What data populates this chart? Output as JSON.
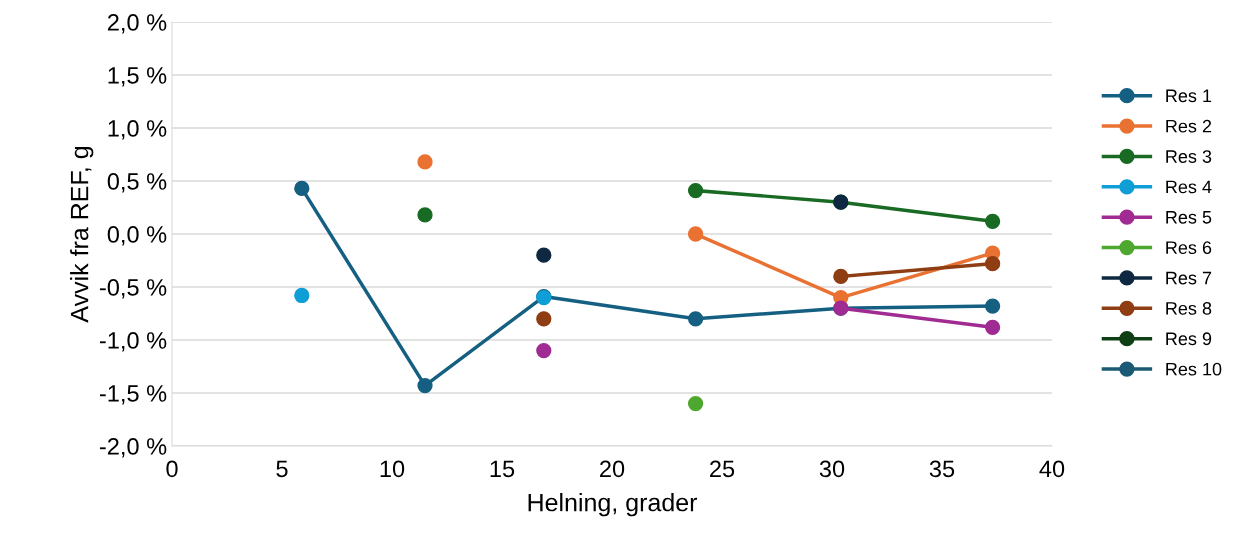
{
  "chart_data": {
    "type": "line",
    "xlabel": "Helning, grader",
    "ylabel": "Avvik fra REF, g",
    "x": [
      5.9,
      11.5,
      16.9,
      23.8,
      30.4,
      37.3
    ],
    "series": [
      {
        "name": "Res 1",
        "color": "#156082",
        "values": [
          0.43,
          -1.43,
          -0.59,
          -0.8,
          -0.7,
          -0.68
        ]
      },
      {
        "name": "Res 2",
        "color": "#e97132",
        "values": [
          null,
          0.68,
          null,
          0.0,
          -0.6,
          -0.18
        ]
      },
      {
        "name": "Res 3",
        "color": "#196b24",
        "values": [
          null,
          0.18,
          null,
          0.41,
          0.3,
          0.12
        ]
      },
      {
        "name": "Res 4",
        "color": "#0f9ed5",
        "type": "scatter",
        "values": [
          -0.58,
          null,
          -0.6,
          null,
          null,
          null
        ]
      },
      {
        "name": "Res 5",
        "color": "#a02b93",
        "values": [
          null,
          null,
          -1.1,
          null,
          -0.7,
          -0.88
        ]
      },
      {
        "name": "Res 6",
        "color": "#4ea72e",
        "values": [
          null,
          null,
          null,
          -1.6,
          null,
          null
        ]
      },
      {
        "name": "Res 7",
        "color": "#0e2841",
        "type": "scatter",
        "values": [
          null,
          null,
          -0.2,
          null,
          0.3,
          null
        ]
      },
      {
        "name": "Res 8",
        "color": "#8f3d12",
        "values": [
          null,
          null,
          -0.8,
          null,
          -0.4,
          -0.28
        ]
      },
      {
        "name": "Res 9",
        "color": "#0f4015",
        "values": [
          null,
          null,
          null,
          null,
          null,
          null
        ]
      },
      {
        "name": "Res 10",
        "color": "#1a5a75",
        "values": [
          null,
          null,
          null,
          null,
          null,
          null
        ]
      }
    ],
    "xlim": [
      0,
      40
    ],
    "xticks": [
      0,
      5,
      10,
      15,
      20,
      25,
      30,
      35,
      40
    ],
    "ylim": [
      -2.0,
      2.0
    ],
    "yticks": [
      {
        "value": -2.0,
        "label": "-2,0 %"
      },
      {
        "value": -1.5,
        "label": "-1,5 %"
      },
      {
        "value": -1.0,
        "label": "-1,0 %"
      },
      {
        "value": -0.5,
        "label": "-0,5 %"
      },
      {
        "value": 0.0,
        "label": "0,0 %"
      },
      {
        "value": 0.5,
        "label": "0,5 %"
      },
      {
        "value": 1.0,
        "label": "1,0 %"
      },
      {
        "value": 1.5,
        "label": "1,5 %"
      },
      {
        "value": 2.0,
        "label": "2,0 %"
      }
    ],
    "grid": "y",
    "legend": "right",
    "marker": "circle",
    "line_style": "solid"
  }
}
